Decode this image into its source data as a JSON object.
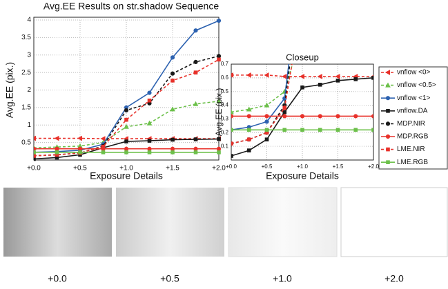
{
  "chart_data": [
    {
      "type": "line",
      "title": "Avg.EE Results on str.shadow Sequence",
      "xlabel": "Exposure Details",
      "ylabel": "Avg.EE (pix.)",
      "x": [
        0,
        0.25,
        0.5,
        0.75,
        1,
        1.25,
        1.5,
        1.75,
        2
      ],
      "xlim": [
        0,
        2
      ],
      "ylim": [
        0,
        4
      ],
      "xticks": [
        {
          "value": 0,
          "label": "+0.0"
        },
        {
          "value": 0.5,
          "label": "+0.5"
        },
        {
          "value": 1,
          "label": "+1.0"
        },
        {
          "value": 1.5,
          "label": "+1.5"
        },
        {
          "value": 2,
          "label": "+2.0"
        }
      ],
      "yticks": [
        0.5,
        1,
        1.5,
        2,
        2.5,
        3,
        3.5,
        4
      ],
      "grid": true,
      "series": [
        {
          "name": "vnflow <0>",
          "color": "#e8312a",
          "dash": true,
          "marker": "triangle-left",
          "values": [
            0.62,
            0.62,
            0.62,
            0.61,
            0.61,
            0.61,
            0.61,
            0.61,
            0.61
          ]
        },
        {
          "name": "vnflow <0.5>",
          "color": "#6cc04a",
          "dash": true,
          "marker": "triangle",
          "values": [
            0.35,
            0.37,
            0.4,
            0.5,
            0.95,
            1.05,
            1.45,
            1.6,
            1.68
          ]
        },
        {
          "name": "vnflow <1>",
          "color": "#2d62b0",
          "dash": false,
          "marker": "circle",
          "values": [
            0.22,
            0.24,
            0.28,
            0.45,
            1.5,
            1.92,
            2.93,
            3.7,
            3.98
          ]
        },
        {
          "name": "vnflow.DA",
          "color": "#1a1a1a",
          "dash": false,
          "marker": "square",
          "values": [
            0.03,
            0.07,
            0.15,
            0.35,
            0.53,
            0.55,
            0.58,
            0.59,
            0.6
          ]
        },
        {
          "name": "MDP.NIR",
          "color": "#1a1a1a",
          "dash": true,
          "marker": "circle",
          "values": [
            0.12,
            0.15,
            0.2,
            0.4,
            1.42,
            1.62,
            2.47,
            2.8,
            2.97
          ]
        },
        {
          "name": "MDP.RGB",
          "color": "#e8312a",
          "dash": false,
          "marker": "circle",
          "values": [
            0.32,
            0.32,
            0.32,
            0.32,
            0.32,
            0.32,
            0.32,
            0.32,
            0.32
          ]
        },
        {
          "name": "LME.NIR",
          "color": "#e8312a",
          "dash": true,
          "marker": "square",
          "values": [
            0.12,
            0.15,
            0.2,
            0.38,
            1.15,
            1.7,
            2.27,
            2.5,
            2.87
          ]
        },
        {
          "name": "LME.RGB",
          "color": "#6cc04a",
          "dash": false,
          "marker": "square",
          "values": [
            0.22,
            0.22,
            0.22,
            0.22,
            0.22,
            0.22,
            0.22,
            0.22,
            0.22
          ]
        }
      ]
    },
    {
      "type": "closeup",
      "title": "Closeup",
      "xlabel": "Exposure Details",
      "ylabel": "Avg.EE (pix.)",
      "xlim": [
        0,
        2
      ],
      "ylim": [
        0,
        0.7
      ],
      "xticks": [
        {
          "value": 0,
          "label": "+0.0"
        },
        {
          "value": 0.5,
          "label": "+0.5"
        },
        {
          "value": 1,
          "label": "+1.0"
        },
        {
          "value": 1.5,
          "label": "+1.5"
        },
        {
          "value": 2,
          "label": "+2.0"
        }
      ],
      "yticks": [
        0.1,
        0.2,
        0.3,
        0.4,
        0.5,
        0.6,
        0.7
      ],
      "grid": true,
      "legend": "right"
    }
  ],
  "images": [
    {
      "label": "+0.0"
    },
    {
      "label": "+0.5"
    },
    {
      "label": "+1.0"
    },
    {
      "label": "+2.0"
    }
  ]
}
